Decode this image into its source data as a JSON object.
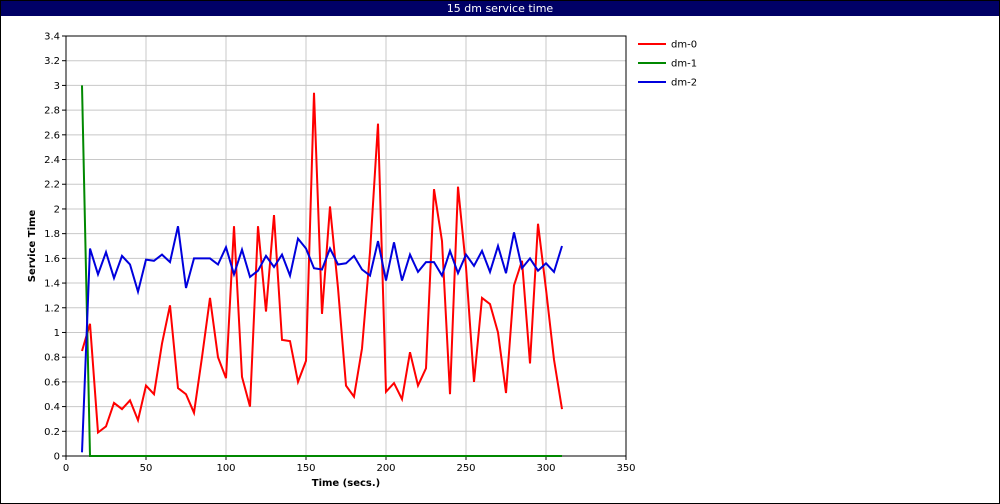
{
  "window": {
    "title": "15 dm service time"
  },
  "chart_data": {
    "type": "line",
    "title": "15 dm service time",
    "xlabel": "Time (secs.)",
    "ylabel": "Service Time",
    "xlim": [
      0,
      350
    ],
    "ylim": [
      0,
      3.4
    ],
    "xticks": [
      0,
      50,
      100,
      150,
      200,
      250,
      300,
      350
    ],
    "yticks": [
      0,
      0.2,
      0.4,
      0.6,
      0.8,
      1,
      1.2,
      1.4,
      1.6,
      1.8,
      2,
      2.2,
      2.4,
      2.6,
      2.8,
      3,
      3.2,
      3.4
    ],
    "grid": true,
    "legend_position": "top-right",
    "x": [
      10,
      15,
      20,
      25,
      30,
      35,
      40,
      45,
      50,
      55,
      60,
      65,
      70,
      75,
      80,
      85,
      90,
      95,
      100,
      105,
      110,
      115,
      120,
      125,
      130,
      135,
      140,
      145,
      150,
      155,
      160,
      165,
      170,
      175,
      180,
      185,
      190,
      195,
      200,
      205,
      210,
      215,
      220,
      225,
      230,
      235,
      240,
      245,
      250,
      255,
      260,
      265,
      270,
      275,
      280,
      285,
      290,
      295,
      300,
      305,
      310
    ],
    "series": [
      {
        "name": "dm-0",
        "color": "#ff0000",
        "values": [
          0.85,
          1.07,
          0.19,
          0.24,
          0.43,
          0.38,
          0.45,
          0.29,
          0.57,
          0.5,
          0.91,
          1.22,
          0.55,
          0.5,
          0.35,
          0.8,
          1.28,
          0.8,
          0.63,
          1.86,
          0.64,
          0.4,
          1.86,
          1.17,
          1.95,
          0.94,
          0.93,
          0.6,
          0.77,
          2.94,
          1.15,
          2.02,
          1.36,
          0.57,
          0.48,
          0.87,
          1.65,
          2.69,
          0.52,
          0.59,
          0.46,
          0.84,
          0.57,
          0.71,
          2.16,
          1.74,
          0.5,
          2.18,
          1.53,
          0.6,
          1.28,
          1.23,
          1.0,
          0.51,
          1.38,
          1.58,
          0.75,
          1.88,
          1.35,
          0.78,
          0.38
        ]
      },
      {
        "name": "dm-1",
        "color": "#008800",
        "values": [
          3.0,
          0.0,
          0.0,
          0.0,
          0.0,
          0.0,
          0.0,
          0.0,
          0.0,
          0.0,
          0.0,
          0.0,
          0.0,
          0.0,
          0.0,
          0.0,
          0.0,
          0.0,
          0.0,
          0.0,
          0.0,
          0.0,
          0.0,
          0.0,
          0.0,
          0.0,
          0.0,
          0.0,
          0.0,
          0.0,
          0.0,
          0.0,
          0.0,
          0.0,
          0.0,
          0.0,
          0.0,
          0.0,
          0.0,
          0.0,
          0.0,
          0.0,
          0.0,
          0.0,
          0.0,
          0.0,
          0.0,
          0.0,
          0.0,
          0.0,
          0.0,
          0.0,
          0.0,
          0.0,
          0.0,
          0.0,
          0.0,
          0.0,
          0.0,
          0.0,
          0.0
        ]
      },
      {
        "name": "dm-2",
        "color": "#0000dd",
        "values": [
          0.03,
          1.68,
          1.47,
          1.65,
          1.44,
          1.62,
          1.55,
          1.33,
          1.59,
          1.58,
          1.63,
          1.57,
          1.86,
          1.36,
          1.6,
          1.6,
          1.6,
          1.55,
          1.69,
          1.47,
          1.67,
          1.45,
          1.5,
          1.62,
          1.53,
          1.63,
          1.46,
          1.76,
          1.68,
          1.52,
          1.51,
          1.68,
          1.55,
          1.56,
          1.62,
          1.51,
          1.46,
          1.74,
          1.42,
          1.73,
          1.42,
          1.63,
          1.49,
          1.57,
          1.57,
          1.46,
          1.66,
          1.48,
          1.63,
          1.54,
          1.66,
          1.49,
          1.7,
          1.48,
          1.81,
          1.52,
          1.6,
          1.5,
          1.56,
          1.49,
          1.7
        ]
      }
    ]
  }
}
